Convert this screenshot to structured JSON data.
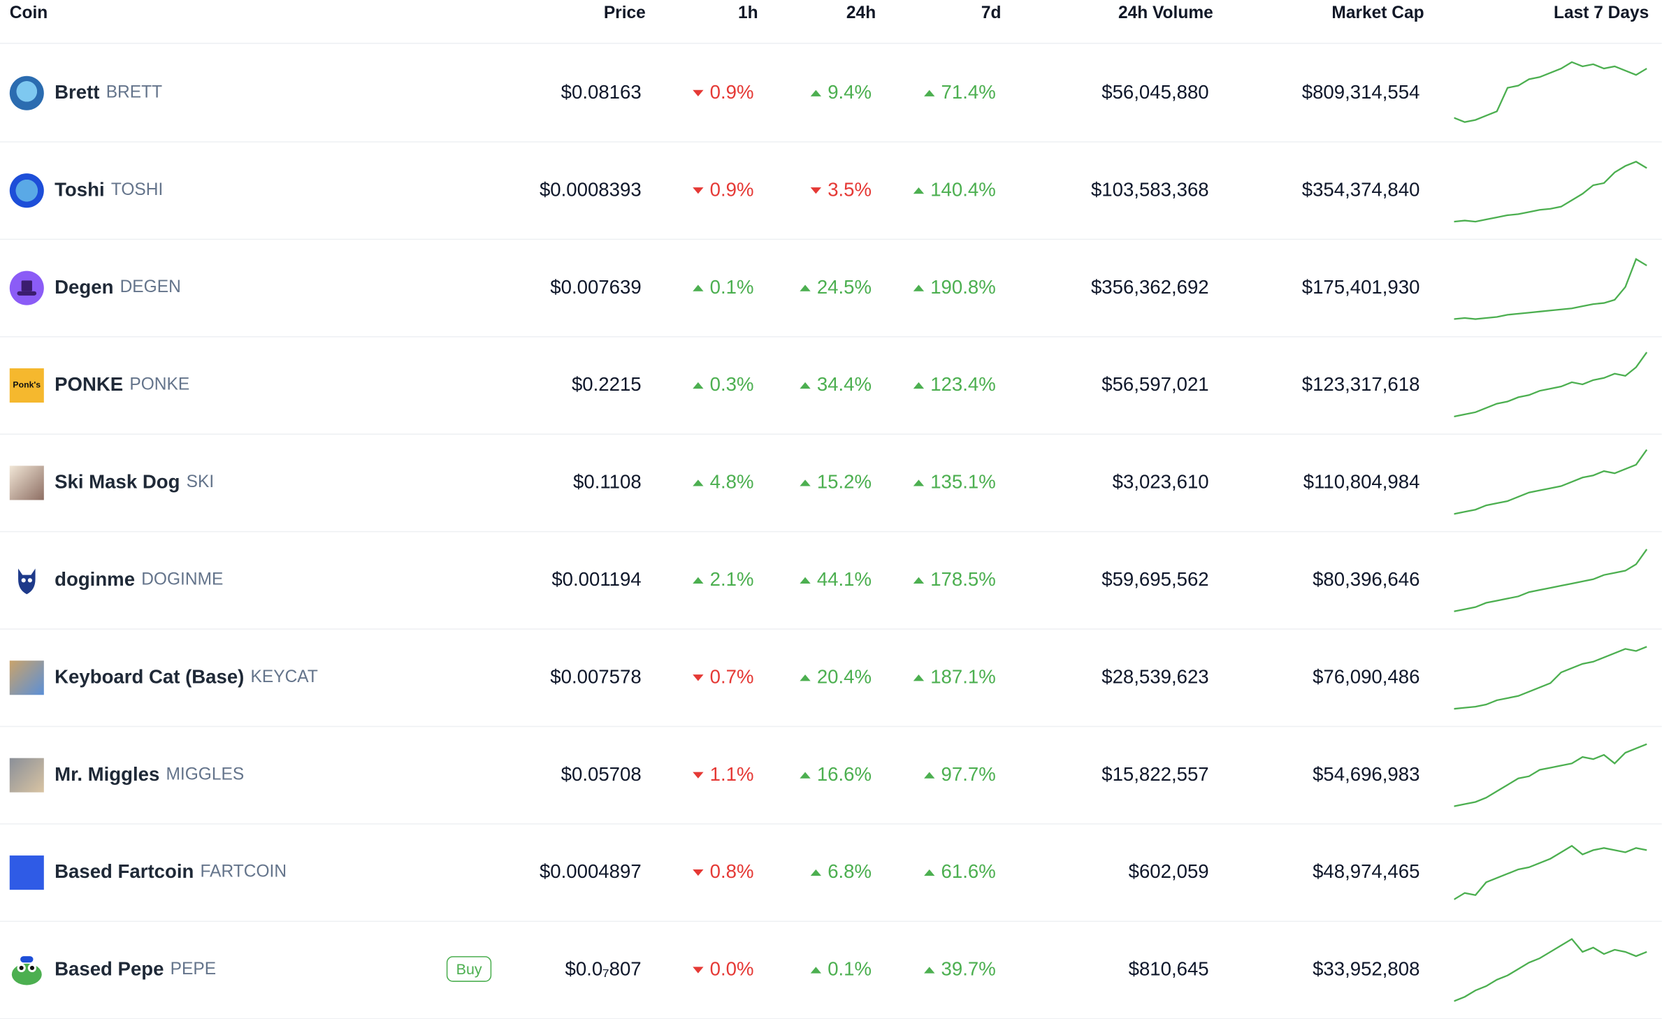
{
  "header": {
    "coin": "Coin",
    "price": "Price",
    "h1": "1h",
    "h24": "24h",
    "d7": "7d",
    "volume": "24h Volume",
    "market_cap": "Market Cap",
    "last7": "Last 7 Days"
  },
  "colors": {
    "up": "#4caf50",
    "down": "#e53935"
  },
  "buy_label": "Buy",
  "rows": [
    {
      "name": "Brett",
      "symbol": "BRETT",
      "price": "$0.08163",
      "h1": "0.9%",
      "h1_dir": "down",
      "h24": "9.4%",
      "h24_dir": "up",
      "d7": "71.4%",
      "d7_dir": "up",
      "volume": "$56,045,880",
      "market_cap": "$809,314,554",
      "logo_icon": "brett-logo-icon",
      "logo_text": ""
    },
    {
      "name": "Toshi",
      "symbol": "TOSHI",
      "price": "$0.0008393",
      "h1": "0.9%",
      "h1_dir": "down",
      "h24": "3.5%",
      "h24_dir": "down",
      "d7": "140.4%",
      "d7_dir": "up",
      "volume": "$103,583,368",
      "market_cap": "$354,374,840",
      "logo_icon": "toshi-logo-icon",
      "logo_text": ""
    },
    {
      "name": "Degen",
      "symbol": "DEGEN",
      "price": "$0.007639",
      "h1": "0.1%",
      "h1_dir": "up",
      "h24": "24.5%",
      "h24_dir": "up",
      "d7": "190.8%",
      "d7_dir": "up",
      "volume": "$356,362,692",
      "market_cap": "$175,401,930",
      "logo_icon": "degen-hat-logo-icon",
      "logo_text": ""
    },
    {
      "name": "PONKE",
      "symbol": "PONKE",
      "price": "$0.2215",
      "h1": "0.3%",
      "h1_dir": "up",
      "h24": "34.4%",
      "h24_dir": "up",
      "d7": "123.4%",
      "d7_dir": "up",
      "volume": "$56,597,021",
      "market_cap": "$123,317,618",
      "logo_icon": "ponke-logo-icon",
      "logo_text": "Ponk's"
    },
    {
      "name": "Ski Mask Dog",
      "symbol": "SKI",
      "price": "$0.1108",
      "h1": "4.8%",
      "h1_dir": "up",
      "h24": "15.2%",
      "h24_dir": "up",
      "d7": "135.1%",
      "d7_dir": "up",
      "volume": "$3,023,610",
      "market_cap": "$110,804,984",
      "logo_icon": "ski-mask-dog-logo-icon",
      "logo_text": ""
    },
    {
      "name": "doginme",
      "symbol": "DOGINME",
      "price": "$0.001194",
      "h1": "2.1%",
      "h1_dir": "up",
      "h24": "44.1%",
      "h24_dir": "up",
      "d7": "178.5%",
      "d7_dir": "up",
      "volume": "$59,695,562",
      "market_cap": "$80,396,646",
      "logo_icon": "doginme-logo-icon",
      "logo_text": ""
    },
    {
      "name": "Keyboard Cat (Base)",
      "symbol": "KEYCAT",
      "price": "$0.007578",
      "h1": "0.7%",
      "h1_dir": "down",
      "h24": "20.4%",
      "h24_dir": "up",
      "d7": "187.1%",
      "d7_dir": "up",
      "volume": "$28,539,623",
      "market_cap": "$76,090,486",
      "logo_icon": "keyboard-cat-logo-icon",
      "logo_text": ""
    },
    {
      "name": "Mr. Miggles",
      "symbol": "MIGGLES",
      "price": "$0.05708",
      "h1": "1.1%",
      "h1_dir": "down",
      "h24": "16.6%",
      "h24_dir": "up",
      "d7": "97.7%",
      "d7_dir": "up",
      "volume": "$15,822,557",
      "market_cap": "$54,696,983",
      "logo_icon": "mr-miggles-logo-icon",
      "logo_text": ""
    },
    {
      "name": "Based Fartcoin",
      "symbol": "FARTCOIN",
      "price": "$0.0004897",
      "h1": "0.8%",
      "h1_dir": "down",
      "h24": "6.8%",
      "h24_dir": "up",
      "d7": "61.6%",
      "d7_dir": "up",
      "volume": "$602,059",
      "market_cap": "$48,974,465",
      "logo_icon": "based-fartcoin-logo-icon",
      "logo_text": ""
    },
    {
      "name": "Based Pepe",
      "symbol": "PEPE",
      "price": "$0.0₇807",
      "h1": "0.0%",
      "h1_dir": "down",
      "h24": "0.1%",
      "h24_dir": "up",
      "d7": "39.7%",
      "d7_dir": "up",
      "volume": "$810,645",
      "market_cap": "$33,952,808",
      "logo_icon": "based-pepe-logo-icon",
      "logo_text": "",
      "buy": true
    }
  ]
}
